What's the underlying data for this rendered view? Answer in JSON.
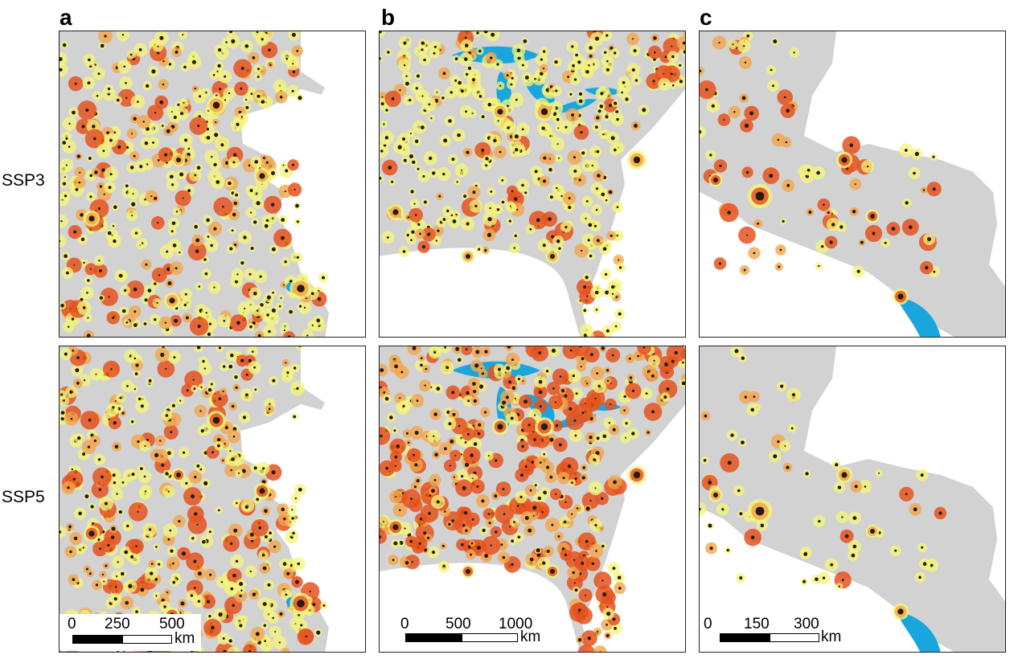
{
  "figure": {
    "column_labels": [
      "a",
      "b",
      "c"
    ],
    "row_labels": [
      "SSP3",
      "SSP5"
    ]
  },
  "scale_bars": {
    "a": {
      "ticks": [
        "0",
        "250",
        "500"
      ],
      "unit": "km"
    },
    "b": {
      "ticks": [
        "0",
        "500",
        "1000"
      ],
      "unit": "km"
    },
    "c": {
      "ticks": [
        "0",
        "150",
        "300"
      ],
      "unit": "km"
    }
  },
  "colors": {
    "land": "#d2d2d2",
    "sea": "#ffffff",
    "water": "#1aa6dd",
    "low": "#f4f47a",
    "mid": "#f3a64a",
    "high": "#e5531e",
    "urban": "#2a1a10"
  }
}
